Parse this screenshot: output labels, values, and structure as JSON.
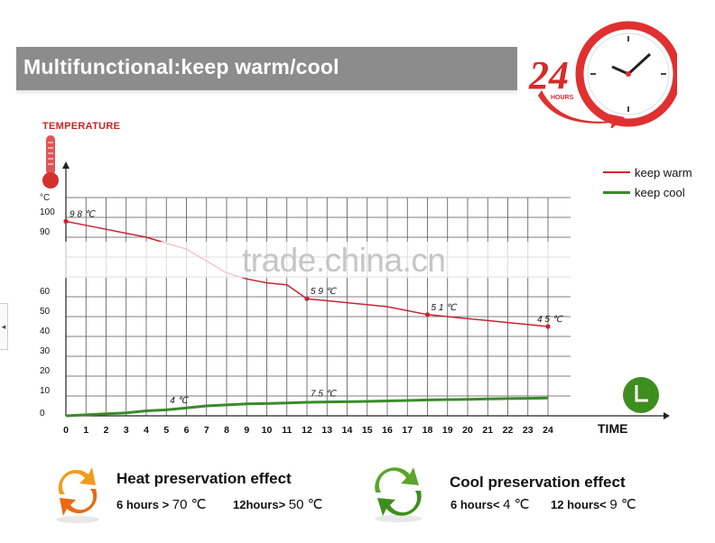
{
  "banner": {
    "title": "Multifunctional:keep warm/cool"
  },
  "badge": {
    "number": "24",
    "sub": "HOURS"
  },
  "chart_data": {
    "type": "line",
    "title": "TEMPERATURE",
    "ylabel": "°C",
    "xlabel": "TIME",
    "x": [
      0,
      1,
      2,
      3,
      4,
      5,
      6,
      7,
      8,
      9,
      10,
      11,
      12,
      13,
      14,
      15,
      16,
      17,
      18,
      19,
      20,
      21,
      22,
      23,
      24
    ],
    "y_ticks": [
      0,
      10,
      20,
      30,
      40,
      50,
      60,
      70,
      80,
      90,
      100
    ],
    "y_tick_labels_visible": [
      "0",
      "10",
      "20",
      "30",
      "40",
      "50",
      "60",
      "90",
      "100"
    ],
    "ylim": [
      0,
      100
    ],
    "xlim": [
      0,
      24
    ],
    "grid": true,
    "legend_position": "top-right",
    "series": [
      {
        "name": "keep warm",
        "color": "#cc2233",
        "x": [
          0,
          1,
          2,
          3,
          4,
          5,
          6,
          7,
          8,
          9,
          10,
          11,
          12,
          13,
          14,
          15,
          16,
          17,
          18,
          19,
          20,
          21,
          22,
          23,
          24
        ],
        "y": [
          98,
          96,
          94,
          92,
          90,
          87,
          84,
          78,
          72,
          69,
          67,
          66,
          59,
          58,
          57,
          56,
          55,
          53,
          51,
          50,
          49,
          48,
          47,
          46,
          45
        ]
      },
      {
        "name": "keep cool",
        "color": "#3a8a2a",
        "x": [
          0,
          1,
          2,
          3,
          4,
          5,
          6,
          7,
          8,
          9,
          10,
          11,
          12,
          13,
          14,
          15,
          16,
          17,
          18,
          19,
          20,
          21,
          22,
          23,
          24
        ],
        "y": [
          0,
          0.5,
          1,
          1.5,
          2.5,
          3,
          4,
          5,
          5.5,
          6,
          6.2,
          6.5,
          6.8,
          7,
          7.1,
          7.3,
          7.5,
          7.7,
          8,
          8.2,
          8.3,
          8.5,
          8.7,
          8.8,
          9
        ]
      }
    ],
    "annotations": [
      {
        "text": "9 8 ℃",
        "x": 0,
        "y": 98,
        "series": "keep warm",
        "marker": true
      },
      {
        "text": "5 9 ℃",
        "x": 12,
        "y": 59,
        "series": "keep warm",
        "marker": true
      },
      {
        "text": "5 1 ℃",
        "x": 18,
        "y": 51,
        "series": "keep warm",
        "marker": true
      },
      {
        "text": "4 5 ℃",
        "x": 24,
        "y": 45,
        "series": "keep warm",
        "marker": true
      },
      {
        "text": "4  ℃",
        "x": 5,
        "y": 4,
        "series": "keep cool",
        "marker": false
      },
      {
        "text": "7.5  ℃",
        "x": 12,
        "y": 7.5,
        "series": "keep cool",
        "marker": false
      }
    ]
  },
  "legend": {
    "warm": "keep warm",
    "cool": "keep cool"
  },
  "watermark": "trade.china.cn",
  "side_tab": "◂",
  "effects": {
    "heat": {
      "title": "Heat preservation effect",
      "line1_label": "6 hours >",
      "line1_value": "70 ℃",
      "line2_label": "12hours>",
      "line2_value": "50 ℃"
    },
    "cool": {
      "title": "Cool preservation effect",
      "line1_label": "6 hours<",
      "line1_value": "4 ℃",
      "line2_label": "12 hours<",
      "line2_value": "9 ℃"
    }
  },
  "colors": {
    "banner": "#8c8c8c",
    "warm": "#cc2233",
    "cool": "#3a8a2a",
    "grid": "#555555",
    "badge_red": "#e03030",
    "clock_green": "#3e8e1e",
    "heat_orange": "#f39a1a",
    "cool_green": "#5aa52a"
  }
}
